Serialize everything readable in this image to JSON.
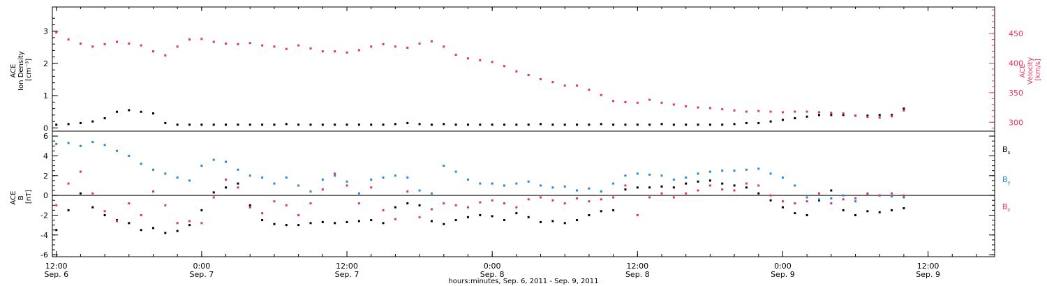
{
  "colors": {
    "density": "#000000",
    "velocity": "#e8325e",
    "bx": "#000000",
    "by": "#1e88e5",
    "bz": "#e8325e",
    "frame": "#000000"
  },
  "time_axis": {
    "label": "hours:minutes, Sep.  6, 2011 - Sep.  9, 2011",
    "range_hours": [
      -0.33,
      77.5
    ],
    "ticks": [
      {
        "hours": 0,
        "time": "12:00",
        "date": "Sep. 6"
      },
      {
        "hours": 12,
        "time": "0:00",
        "date": "Sep. 7"
      },
      {
        "hours": 24,
        "time": "12:00",
        "date": "Sep. 7"
      },
      {
        "hours": 36,
        "time": "0:00",
        "date": "Sep. 8"
      },
      {
        "hours": 48,
        "time": "12:00",
        "date": "Sep. 8"
      },
      {
        "hours": 60,
        "time": "0:00",
        "date": "Sep. 9"
      },
      {
        "hours": 72,
        "time": "12:00",
        "date": "Sep. 9"
      }
    ]
  },
  "chart_data": [
    {
      "type": "scatter",
      "panel": "top",
      "left_axis": {
        "label_lines": [
          "ACE",
          "Ion Density",
          "[cm⁻³]"
        ],
        "ylim": [
          -0.1,
          3.75
        ],
        "ticks": [
          0,
          1,
          2,
          3
        ]
      },
      "right_axis": {
        "label_lines": [
          "ACE",
          "Velocity",
          "[km/s]"
        ],
        "ylim": [
          285,
          495
        ],
        "ticks": [
          300,
          350,
          400,
          450
        ]
      },
      "series": [
        {
          "axis": "left",
          "x_hours": [
            0,
            1,
            2,
            3,
            4,
            5,
            6,
            7,
            8,
            9,
            10,
            11,
            12,
            13,
            14,
            15,
            16,
            17,
            18,
            19,
            20,
            21,
            22,
            23,
            24,
            25,
            26,
            27,
            28,
            29,
            30,
            31,
            32,
            33,
            34,
            35,
            36,
            37,
            38,
            39,
            40,
            41,
            42,
            43,
            44,
            45,
            46,
            47,
            48,
            49,
            50,
            51,
            52,
            53,
            54,
            55,
            56,
            57,
            58,
            59,
            60,
            61,
            62,
            63,
            64,
            65,
            66,
            67,
            68,
            69,
            70
          ],
          "values": [
            0.1,
            0.12,
            0.15,
            0.2,
            0.3,
            0.5,
            0.55,
            0.5,
            0.45,
            0.15,
            0.1,
            0.1,
            0.1,
            0.1,
            0.1,
            0.1,
            0.1,
            0.1,
            0.1,
            0.12,
            0.1,
            0.1,
            0.1,
            0.1,
            0.1,
            0.1,
            0.1,
            0.1,
            0.12,
            0.15,
            0.12,
            0.1,
            0.12,
            0.1,
            0.1,
            0.1,
            0.1,
            0.1,
            0.1,
            0.1,
            0.12,
            0.1,
            0.1,
            0.1,
            0.1,
            0.12,
            0.1,
            0.1,
            0.1,
            0.1,
            0.12,
            0.1,
            0.1,
            0.1,
            0.1,
            0.1,
            0.12,
            0.15,
            0.15,
            0.2,
            0.25,
            0.3,
            0.35,
            0.4,
            0.4,
            0.4,
            0.38,
            0.38,
            0.4,
            0.4,
            0.6
          ]
        },
        {
          "axis": "right",
          "x_hours": [
            0,
            1,
            2,
            3,
            4,
            5,
            6,
            7,
            8,
            9,
            10,
            11,
            12,
            13,
            14,
            15,
            16,
            17,
            18,
            19,
            20,
            21,
            22,
            23,
            24,
            25,
            26,
            27,
            28,
            29,
            30,
            31,
            32,
            33,
            34,
            35,
            36,
            37,
            38,
            39,
            40,
            41,
            42,
            43,
            44,
            45,
            46,
            47,
            48,
            49,
            50,
            51,
            52,
            53,
            54,
            55,
            56,
            57,
            58,
            59,
            60,
            61,
            62,
            63,
            64,
            65,
            66,
            67,
            68,
            69,
            70
          ],
          "values": [
            452,
            440,
            433,
            428,
            432,
            436,
            433,
            430,
            420,
            413,
            428,
            440,
            441,
            436,
            433,
            432,
            434,
            430,
            428,
            424,
            430,
            425,
            420,
            420,
            418,
            422,
            428,
            432,
            428,
            426,
            433,
            437,
            428,
            414,
            408,
            405,
            402,
            395,
            386,
            380,
            373,
            368,
            362,
            362,
            355,
            346,
            336,
            334,
            333,
            338,
            333,
            330,
            327,
            325,
            324,
            322,
            320,
            318,
            319,
            318,
            317,
            318,
            318,
            317,
            316,
            315,
            311,
            309,
            308,
            310,
            320
          ]
        }
      ]
    },
    {
      "type": "scatter",
      "panel": "bottom",
      "left_axis": {
        "label_lines": [
          "ACE",
          "B",
          "[nT]"
        ],
        "ylim": [
          -6.2,
          6.5
        ],
        "ticks": [
          -6,
          -4,
          -2,
          0,
          2,
          4,
          6
        ]
      },
      "series": [
        {
          "name": "Bx",
          "x_hours": [
            0,
            1,
            2,
            3,
            4,
            5,
            6,
            7,
            8,
            9,
            10,
            11,
            12,
            13,
            14,
            15,
            16,
            17,
            18,
            19,
            20,
            21,
            22,
            23,
            24,
            25,
            26,
            27,
            28,
            29,
            30,
            31,
            32,
            33,
            34,
            35,
            36,
            37,
            38,
            39,
            40,
            41,
            42,
            43,
            44,
            45,
            46,
            47,
            48,
            49,
            50,
            51,
            52,
            53,
            54,
            55,
            56,
            57,
            58,
            59,
            60,
            61,
            62,
            63,
            64,
            65,
            66,
            67,
            68,
            69,
            70
          ],
          "values": [
            -3.5,
            -1.5,
            0.2,
            -1.2,
            -2.0,
            -2.5,
            -2.8,
            -3.5,
            -3.3,
            -3.8,
            -3.6,
            -3.0,
            -1.5,
            0.3,
            0.8,
            1.2,
            -1.0,
            -2.5,
            -2.9,
            -3.0,
            -3.0,
            -2.8,
            -2.7,
            -2.8,
            -2.7,
            -2.6,
            -2.5,
            -2.8,
            -1.2,
            -0.8,
            -1.0,
            -2.6,
            -2.9,
            -2.5,
            -2.2,
            -2.0,
            -2.1,
            -2.5,
            -1.8,
            -2.2,
            -2.7,
            -2.6,
            -2.8,
            -2.5,
            -2.0,
            -1.6,
            -1.5,
            0.6,
            0.8,
            0.8,
            0.9,
            0.8,
            1.2,
            1.4,
            1.5,
            1.2,
            1.0,
            0.8,
            0.2,
            -0.5,
            -1.2,
            -1.8,
            -2.0,
            -0.5,
            0.5,
            -1.5,
            -2.0,
            -1.6,
            -1.7,
            -1.5,
            -1.3
          ]
        },
        {
          "name": "By",
          "x_hours": [
            0,
            1,
            2,
            3,
            4,
            5,
            6,
            7,
            8,
            9,
            10,
            11,
            12,
            13,
            14,
            15,
            16,
            17,
            18,
            19,
            20,
            21,
            22,
            23,
            24,
            25,
            26,
            27,
            28,
            29,
            30,
            31,
            32,
            33,
            34,
            35,
            36,
            37,
            38,
            39,
            40,
            41,
            42,
            43,
            44,
            45,
            46,
            47,
            48,
            49,
            50,
            51,
            52,
            53,
            54,
            55,
            56,
            57,
            58,
            59,
            60,
            61,
            62,
            63,
            64,
            65,
            66,
            67,
            68,
            69,
            70
          ],
          "values": [
            5.2,
            5.3,
            5.0,
            5.4,
            5.1,
            4.5,
            4.0,
            3.2,
            2.6,
            2.2,
            1.8,
            1.5,
            3.0,
            3.6,
            3.4,
            2.6,
            2.0,
            1.8,
            1.2,
            1.8,
            1.0,
            0.4,
            1.6,
            2.0,
            1.4,
            0.2,
            1.6,
            1.8,
            2.0,
            1.8,
            0.5,
            0.2,
            3.0,
            2.4,
            1.6,
            1.2,
            1.2,
            1.0,
            1.2,
            1.4,
            1.0,
            0.8,
            0.9,
            0.5,
            0.7,
            0.4,
            1.2,
            2.0,
            2.2,
            2.1,
            2.0,
            1.6,
            1.8,
            2.2,
            2.4,
            2.5,
            2.5,
            2.6,
            2.7,
            2.2,
            1.8,
            1.0,
            -0.2,
            -0.4,
            -0.3,
            0.0,
            -0.6,
            0.2,
            0.0,
            -0.1,
            -0.2
          ]
        },
        {
          "name": "Bz",
          "x_hours": [
            0,
            1,
            2,
            3,
            4,
            5,
            6,
            7,
            8,
            9,
            10,
            11,
            12,
            13,
            14,
            15,
            16,
            17,
            18,
            19,
            20,
            21,
            22,
            23,
            24,
            25,
            26,
            27,
            28,
            29,
            30,
            31,
            32,
            33,
            34,
            35,
            36,
            37,
            38,
            39,
            40,
            41,
            42,
            43,
            44,
            45,
            46,
            47,
            48,
            49,
            50,
            51,
            52,
            53,
            54,
            55,
            56,
            57,
            58,
            59,
            60,
            61,
            62,
            63,
            64,
            65,
            66,
            67,
            68,
            69,
            70
          ],
          "values": [
            -1.0,
            1.2,
            2.4,
            0.2,
            -1.6,
            -2.6,
            -0.8,
            -2.0,
            0.4,
            -1.0,
            -2.8,
            -2.6,
            -2.8,
            -0.2,
            1.6,
            0.8,
            -1.2,
            -1.8,
            -0.6,
            -1.0,
            -2.0,
            -0.8,
            0.6,
            2.2,
            1.0,
            -0.8,
            0.8,
            -1.5,
            -2.4,
            0.4,
            -2.2,
            -1.4,
            -0.8,
            -1.0,
            -1.2,
            -0.7,
            -0.5,
            -0.8,
            -1.2,
            -0.4,
            -0.2,
            -0.5,
            -0.8,
            -0.3,
            -0.6,
            -0.4,
            -0.2,
            1.0,
            -2.0,
            -0.2,
            0.2,
            -0.2,
            0.2,
            0.5,
            1.0,
            0.6,
            0.5,
            1.2,
            1.0,
            0.0,
            -0.6,
            -0.8,
            -0.6,
            0.2,
            -0.8,
            -0.4,
            -0.3,
            0.1,
            0.0,
            0.2,
            0.0
          ]
        }
      ],
      "legend": [
        "Bx",
        "By",
        "Bz"
      ]
    }
  ]
}
